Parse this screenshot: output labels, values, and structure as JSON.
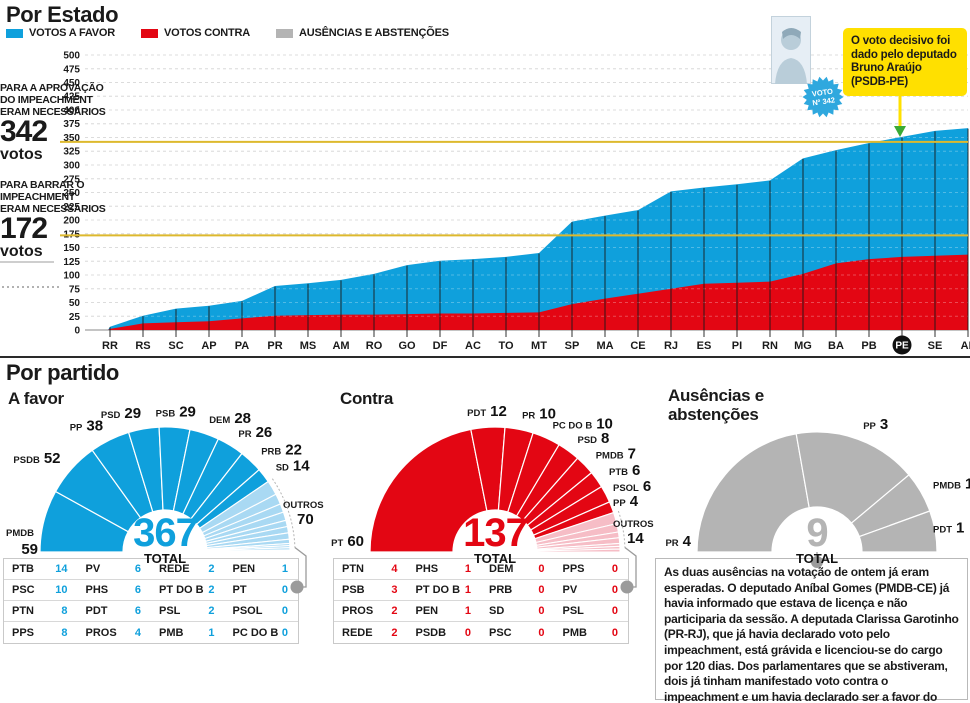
{
  "colors": {
    "blue": "#0FA0DC",
    "light_blue": "#A9D9F3",
    "red": "#E30613",
    "light_red": "#F6BDC6",
    "gray": "#B4B4B4",
    "grid": "#CFCFCF",
    "gold": "#DDB92E",
    "yellow": "#FFE000",
    "green": "#3AAA35",
    "text": "#1A1A1A"
  },
  "header": {
    "title": "Por Estado",
    "legend": [
      {
        "label": "VOTOS A FAVOR",
        "color": "#0FA0DC"
      },
      {
        "label": "VOTOS CONTRA",
        "color": "#E30613"
      },
      {
        "label": "AUSÊNCIAS E ABSTENÇÕES",
        "color": "#B4B4B4"
      }
    ]
  },
  "annotations": {
    "approve": {
      "lines": [
        "PARA A APROVAÇÃO",
        "DO IMPEACHMENT",
        "ERAM NECESSÁRIOS"
      ],
      "number": "342",
      "unit": "votos"
    },
    "block": {
      "lines": [
        "PARA BARRAR O",
        "IMPEACHMENT",
        "ERAM NECESSÁRIOS"
      ],
      "number": "172",
      "unit": "votos"
    }
  },
  "callout": {
    "text": "O voto decisivo foi dado pelo deputado Bruno Araújo (PSDB-PE)",
    "badge_line1": "VOTO",
    "badge_line2": "Nº 342"
  },
  "section2_title": "Por partido",
  "chart_data": [
    {
      "type": "area",
      "title": "Por Estado",
      "x_categories": [
        "RR",
        "RS",
        "SC",
        "AP",
        "PA",
        "PR",
        "MS",
        "AM",
        "RO",
        "GO",
        "DF",
        "AC",
        "TO",
        "MT",
        "SP",
        "MA",
        "CE",
        "RJ",
        "ES",
        "PI",
        "RN",
        "MG",
        "BA",
        "PB",
        "PE",
        "SE",
        "AL"
      ],
      "ylim": [
        0,
        500
      ],
      "ytick_step": 25,
      "grid": true,
      "series": [
        {
          "name": "VOTOS A FAVOR",
          "color": "#0FA0DC",
          "cumulative": [
            6,
            26,
            39,
            44,
            53,
            80,
            85,
            91,
            102,
            118,
            126,
            129,
            133,
            140,
            197,
            208,
            218,
            252,
            259,
            265,
            272,
            312,
            327,
            340,
            351,
            362,
            367
          ]
        },
        {
          "name": "VOTOS CONTRA",
          "color": "#E30613",
          "cumulative": [
            2,
            12,
            14,
            16,
            21,
            26,
            27,
            28,
            28,
            29,
            30,
            30,
            31,
            32,
            47,
            57,
            66,
            75,
            84,
            86,
            88,
            102,
            121,
            129,
            133,
            135,
            137
          ]
        }
      ],
      "thresholds": [
        {
          "value": 342,
          "meaning": "para a aprovação do impeachment"
        },
        {
          "value": 172,
          "meaning": "para barrar o impeachment"
        }
      ],
      "highlighted_category": "PE"
    },
    {
      "type": "pie",
      "shape": "semi-donut",
      "title": "A favor",
      "total": 367,
      "total_label": "TOTAL",
      "color": "#0FA0DC",
      "segments": [
        {
          "party": "PMDB",
          "value": 59
        },
        {
          "party": "PSDB",
          "value": 52
        },
        {
          "party": "PP",
          "value": 38
        },
        {
          "party": "PSD",
          "value": 29
        },
        {
          "party": "PSB",
          "value": 29
        },
        {
          "party": "DEM",
          "value": 28
        },
        {
          "party": "PR",
          "value": 26
        },
        {
          "party": "PRB",
          "value": 22
        },
        {
          "party": "SD",
          "value": 14
        }
      ],
      "outros": {
        "label": "OUTROS",
        "value": 70,
        "color": "#A9D9F3",
        "breakdown": [
          14,
          10,
          8,
          8,
          6,
          6,
          6,
          4,
          2,
          2,
          2,
          1,
          1
        ]
      }
    },
    {
      "type": "pie",
      "shape": "semi-donut",
      "title": "Contra",
      "total": 137,
      "total_label": "TOTAL",
      "color": "#E30613",
      "segments": [
        {
          "party": "PT",
          "value": 60
        },
        {
          "party": "PDT",
          "value": 12
        },
        {
          "party": "PR",
          "value": 10
        },
        {
          "party": "PC DO B",
          "value": 10
        },
        {
          "party": "PSD",
          "value": 8
        },
        {
          "party": "PMDB",
          "value": 7
        },
        {
          "party": "PTB",
          "value": 6
        },
        {
          "party": "PSOL",
          "value": 6
        },
        {
          "party": "PP",
          "value": 4
        }
      ],
      "outros": {
        "label": "OUTROS",
        "value": 14,
        "color": "#F6BDC6",
        "breakdown": [
          4,
          3,
          2,
          2,
          1,
          1,
          1
        ]
      }
    },
    {
      "type": "pie",
      "shape": "semi-donut",
      "title": "Ausências e abstenções",
      "total": 9,
      "total_label": "TOTAL",
      "color": "#B4B4B4",
      "segments": [
        {
          "party": "PR",
          "value": 4
        },
        {
          "party": "PP",
          "value": 3
        },
        {
          "party": "PMDB",
          "value": 1
        },
        {
          "party": "PDT",
          "value": 1
        }
      ]
    }
  ],
  "tables": {
    "favor": {
      "accent": "#0FA0DC",
      "rows": [
        [
          {
            "party": "PTB",
            "value": 14
          },
          {
            "party": "PV",
            "value": 6
          },
          {
            "party": "REDE",
            "value": 2
          },
          {
            "party": "PEN",
            "value": 1
          }
        ],
        [
          {
            "party": "PSC",
            "value": 10
          },
          {
            "party": "PHS",
            "value": 6
          },
          {
            "party": "PT DO B",
            "value": 2
          },
          {
            "party": "PT",
            "value": 0
          }
        ],
        [
          {
            "party": "PTN",
            "value": 8
          },
          {
            "party": "PDT",
            "value": 6
          },
          {
            "party": "PSL",
            "value": 2
          },
          {
            "party": "PSOL",
            "value": 0
          }
        ],
        [
          {
            "party": "PPS",
            "value": 8
          },
          {
            "party": "PROS",
            "value": 4
          },
          {
            "party": "PMB",
            "value": 1
          },
          {
            "party": "PC DO B",
            "value": 0
          }
        ]
      ]
    },
    "contra": {
      "accent": "#E30613",
      "rows": [
        [
          {
            "party": "PTN",
            "value": 4
          },
          {
            "party": "PHS",
            "value": 1
          },
          {
            "party": "DEM",
            "value": 0
          },
          {
            "party": "PPS",
            "value": 0
          }
        ],
        [
          {
            "party": "PSB",
            "value": 3
          },
          {
            "party": "PT DO B",
            "value": 1
          },
          {
            "party": "PRB",
            "value": 0
          },
          {
            "party": "PV",
            "value": 0
          }
        ],
        [
          {
            "party": "PROS",
            "value": 2
          },
          {
            "party": "PEN",
            "value": 1
          },
          {
            "party": "SD",
            "value": 0
          },
          {
            "party": "PSL",
            "value": 0
          }
        ],
        [
          {
            "party": "REDE",
            "value": 2
          },
          {
            "party": "PSDB",
            "value": 0
          },
          {
            "party": "PSC",
            "value": 0
          },
          {
            "party": "PMB",
            "value": 0
          }
        ]
      ]
    }
  },
  "footnote": "As duas ausências na votação de ontem já eram esperadas. O deputado Aníbal Gomes (PMDB-CE) já havia informado que estava de licença e não participaria da sessão. A deputada Clarissa Garotinho (PR-RJ), que já havia declarado voto pelo impeachment, está grávida e licenciou-se do cargo por 120 dias. Dos parlamentares que se abstiveram, dois já tinham manifestado voto contra o impeachment e um havia declarado ser a favor do afastamento da presidente"
}
